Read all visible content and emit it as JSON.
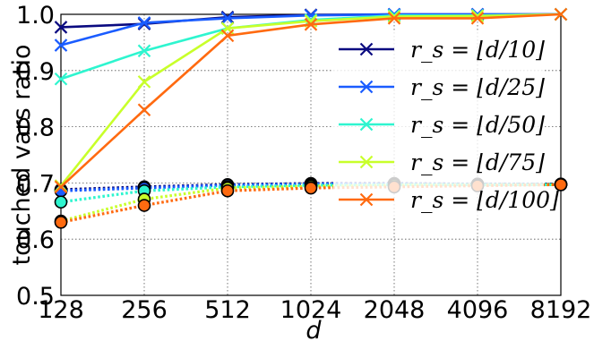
{
  "chart_data": {
    "type": "line",
    "xlabel": "d",
    "ylabel": "touched vars ratio",
    "categories": [
      "128",
      "256",
      "512",
      "1024",
      "2048",
      "4096",
      "8192"
    ],
    "yticks": [
      "0.5",
      "0.6",
      "0.7",
      "0.8",
      "0.9",
      "1.0"
    ],
    "ylim": [
      0.5,
      1.0
    ],
    "grid": true,
    "legend_position": "right",
    "series": [
      {
        "name": "r_s = ⌊d/10⌋",
        "color": "#0a0a80",
        "marker": "x",
        "style": "solid",
        "values": [
          0.977,
          0.983,
          0.995,
          0.999,
          1.0,
          1.0,
          1.0
        ]
      },
      {
        "name": "r_s = ⌊d/25⌋",
        "color": "#1a5cff",
        "marker": "x",
        "style": "solid",
        "values": [
          0.945,
          0.985,
          0.993,
          0.998,
          1.0,
          1.0,
          1.0
        ]
      },
      {
        "name": "r_s = ⌊d/50⌋",
        "color": "#2ef5cf",
        "marker": "x",
        "style": "solid",
        "values": [
          0.885,
          0.935,
          0.975,
          0.99,
          0.998,
          0.998,
          1.0
        ]
      },
      {
        "name": "r_s = ⌊d/75⌋",
        "color": "#c8ff2a",
        "marker": "x",
        "style": "solid",
        "values": [
          0.695,
          0.88,
          0.975,
          0.988,
          0.996,
          0.997,
          1.0
        ]
      },
      {
        "name": "r_s = ⌊d/100⌋",
        "color": "#ff6a10",
        "marker": "x",
        "style": "solid",
        "values": [
          0.693,
          0.83,
          0.962,
          0.982,
          0.993,
          0.993,
          1.0
        ]
      },
      {
        "color": "#0a0a80",
        "marker": "o",
        "style": "dotted",
        "values": [
          0.688,
          0.693,
          0.697,
          0.699,
          0.699,
          0.698,
          0.698
        ]
      },
      {
        "color": "#1a5cff",
        "marker": "o",
        "style": "dotted",
        "values": [
          0.686,
          0.691,
          0.696,
          0.698,
          0.698,
          0.697,
          0.697
        ]
      },
      {
        "color": "#2ef5cf",
        "marker": "o",
        "style": "dotted",
        "values": [
          0.666,
          0.686,
          0.693,
          0.696,
          0.697,
          0.697,
          0.697
        ]
      },
      {
        "color": "#c8ff2a",
        "marker": "o",
        "style": "dotted",
        "values": [
          0.632,
          0.671,
          0.691,
          0.694,
          0.696,
          0.696,
          0.697
        ]
      },
      {
        "color": "#ff6a10",
        "marker": "o",
        "style": "dotted",
        "values": [
          0.63,
          0.66,
          0.686,
          0.691,
          0.693,
          0.695,
          0.697
        ]
      }
    ]
  }
}
